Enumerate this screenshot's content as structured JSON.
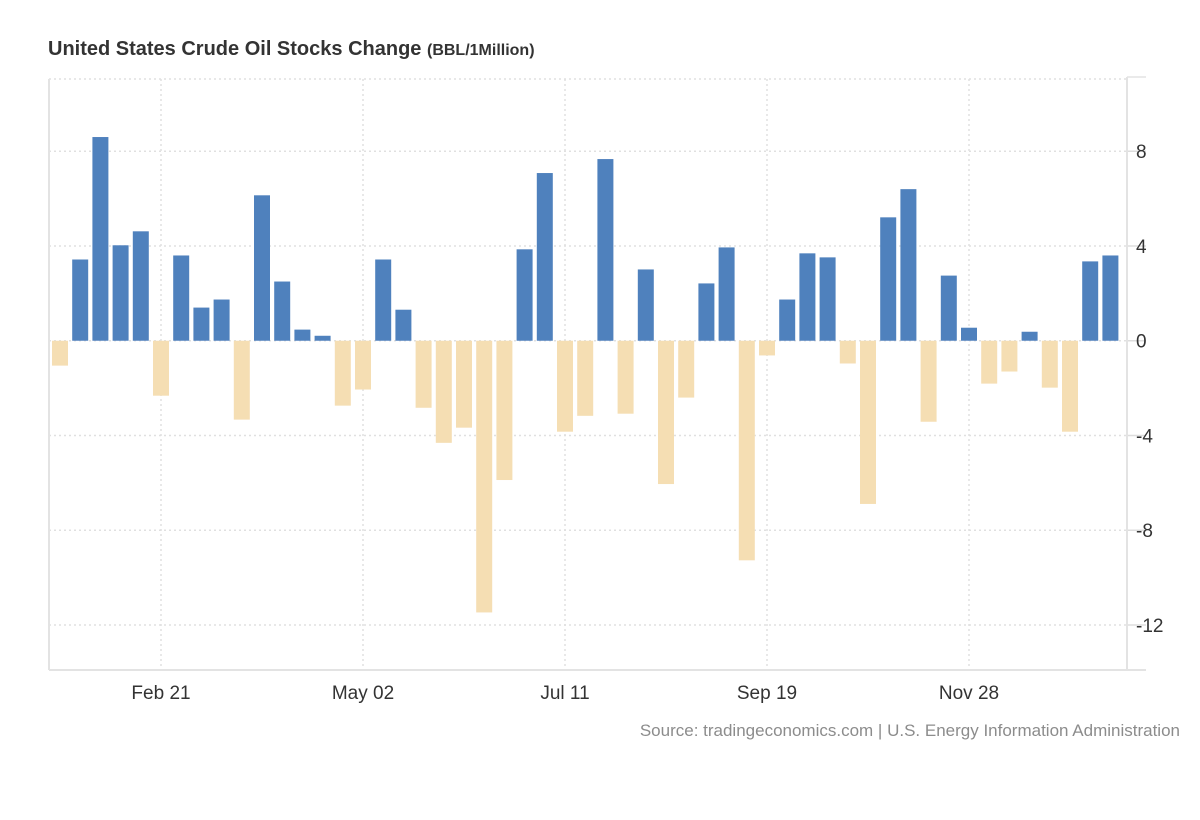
{
  "chart_data": {
    "type": "bar",
    "title": "United States Crude Oil Stocks Change",
    "title_unit": "(BBL/1Million)",
    "xlabel": "",
    "ylabel": "",
    "ylim": [
      -13.9,
      11.05
    ],
    "yticks": [
      8,
      4,
      0,
      -4,
      -8,
      -12
    ],
    "ytick_labels": [
      "8",
      "4",
      "0",
      "-4",
      "-8",
      "-12"
    ],
    "y_axis_side": "right",
    "grid": true,
    "xtick_labels": [
      {
        "index": 5,
        "label": "Feb 21"
      },
      {
        "index": 15,
        "label": "May 02"
      },
      {
        "index": 25,
        "label": "Jul 11"
      },
      {
        "index": 35,
        "label": "Sep 19"
      },
      {
        "index": 45,
        "label": "Nov 28"
      }
    ],
    "colors": {
      "positive": "#4f81bd",
      "negative": "#f5deb3"
    },
    "values": [
      -1.05,
      3.43,
      8.6,
      4.03,
      4.62,
      -2.32,
      3.6,
      1.4,
      1.74,
      -3.33,
      6.14,
      2.5,
      0.47,
      0.21,
      -2.74,
      -2.06,
      3.43,
      1.31,
      -2.83,
      -4.31,
      -3.67,
      -11.47,
      -5.88,
      3.86,
      7.08,
      -3.84,
      -3.17,
      7.67,
      -3.08,
      3.01,
      -6.05,
      -2.4,
      2.42,
      3.94,
      -9.27,
      -0.62,
      1.74,
      3.69,
      3.52,
      -0.96,
      -6.89,
      5.21,
      6.4,
      -3.42,
      2.75,
      0.55,
      -1.81,
      -1.3,
      0.38,
      -1.98,
      -3.84,
      3.35,
      3.6
    ],
    "source": "Source: tradingeconomics.com | U.S. Energy Information Administration"
  }
}
